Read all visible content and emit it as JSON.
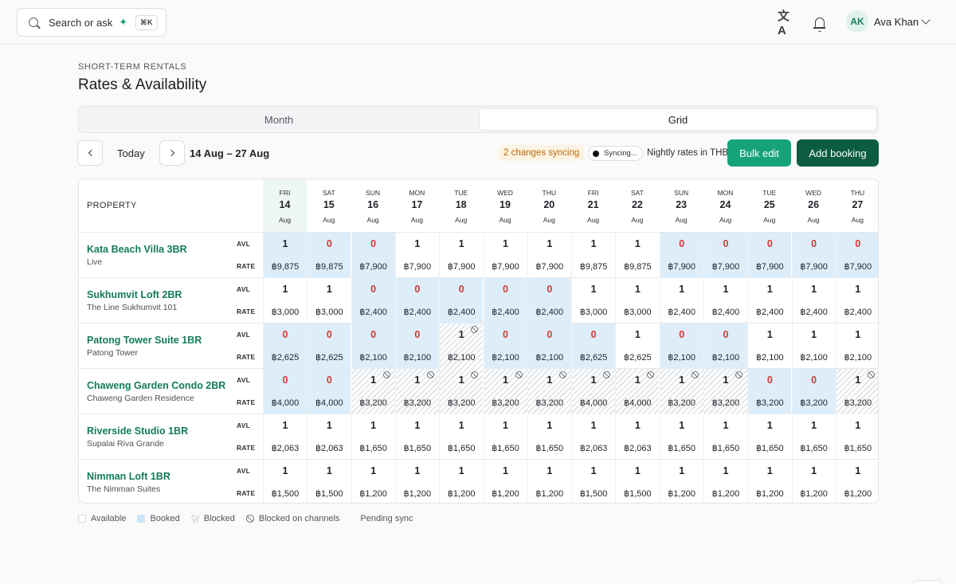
{
  "topbar": {
    "search_placeholder": "Search or ask",
    "search_shortcut": "⌘K",
    "user_initials": "AK",
    "user_name": "Ava Khan"
  },
  "header": {
    "eyebrow": "SHORT-TERM RENTALS",
    "title": "Rates & Availability"
  },
  "view_switch": {
    "month": "Month",
    "grid": "Grid",
    "selected": "Grid"
  },
  "toolbar": {
    "today": "Today",
    "range": "14 Aug – 27 Aug",
    "changes_syncing": "2 changes syncing",
    "sync_status": "Syncing...",
    "rates_note": "Nightly rates in THB",
    "bulk_edit": "Bulk edit",
    "add_booking": "Add booking"
  },
  "grid": {
    "property_header": "PROPERTY",
    "avl_label": "AVL",
    "rate_label": "RATE",
    "days": [
      {
        "dow": "FRI",
        "day": "14",
        "month": "Aug",
        "today": true
      },
      {
        "dow": "SAT",
        "day": "15",
        "month": "Aug"
      },
      {
        "dow": "SUN",
        "day": "16",
        "month": "Aug"
      },
      {
        "dow": "MON",
        "day": "17",
        "month": "Aug"
      },
      {
        "dow": "TUE",
        "day": "18",
        "month": "Aug"
      },
      {
        "dow": "WED",
        "day": "19",
        "month": "Aug"
      },
      {
        "dow": "THU",
        "day": "20",
        "month": "Aug"
      },
      {
        "dow": "FRI",
        "day": "21",
        "month": "Aug"
      },
      {
        "dow": "SAT",
        "day": "22",
        "month": "Aug"
      },
      {
        "dow": "SUN",
        "day": "23",
        "month": "Aug"
      },
      {
        "dow": "MON",
        "day": "24",
        "month": "Aug"
      },
      {
        "dow": "TUE",
        "day": "25",
        "month": "Aug"
      },
      {
        "dow": "WED",
        "day": "26",
        "month": "Aug"
      },
      {
        "dow": "THU",
        "day": "27",
        "month": "Aug"
      }
    ],
    "properties": [
      {
        "name": "Kata Beach Villa 3BR",
        "sub": "Live",
        "avl": [
          "1",
          "0",
          "0",
          "1",
          "1",
          "1",
          "1",
          "1",
          "1",
          "0",
          "0",
          "0",
          "0",
          "0"
        ],
        "rate": [
          "฿9,875",
          "฿9,875",
          "฿7,900",
          "฿7,900",
          "฿7,900",
          "฿7,900",
          "฿7,900",
          "฿9,875",
          "฿9,875",
          "฿7,900",
          "฿7,900",
          "฿7,900",
          "฿7,900",
          "฿7,900"
        ],
        "status": [
          "booked",
          "booked",
          "booked",
          "",
          "",
          "",
          "",
          "",
          "",
          "booked",
          "booked",
          "booked",
          "booked",
          "booked"
        ],
        "channel": [
          false,
          false,
          false,
          false,
          false,
          false,
          false,
          false,
          false,
          false,
          false,
          false,
          false,
          false
        ]
      },
      {
        "name": "Sukhumvit Loft 2BR",
        "sub": "The Line Sukhumvit 101",
        "avl": [
          "1",
          "1",
          "0",
          "0",
          "0",
          "0",
          "0",
          "1",
          "1",
          "1",
          "1",
          "1",
          "1",
          "1"
        ],
        "rate": [
          "฿3,000",
          "฿3,000",
          "฿2,400",
          "฿2,400",
          "฿2,400",
          "฿2,400",
          "฿2,400",
          "฿3,000",
          "฿3,000",
          "฿2,400",
          "฿2,400",
          "฿2,400",
          "฿2,400",
          "฿2,400"
        ],
        "status": [
          "",
          "",
          "booked",
          "booked",
          "booked",
          "booked",
          "booked",
          "",
          "",
          "",
          "",
          "",
          "",
          ""
        ],
        "channel": [
          false,
          false,
          false,
          false,
          false,
          false,
          false,
          false,
          false,
          false,
          false,
          false,
          false,
          false
        ]
      },
      {
        "name": "Patong Tower Suite 1BR",
        "sub": "Patong Tower",
        "avl": [
          "0",
          "0",
          "0",
          "0",
          "1",
          "0",
          "0",
          "0",
          "1",
          "0",
          "0",
          "1",
          "1",
          "1"
        ],
        "rate": [
          "฿2,625",
          "฿2,625",
          "฿2,100",
          "฿2,100",
          "฿2,100",
          "฿2,100",
          "฿2,100",
          "฿2,625",
          "฿2,625",
          "฿2,100",
          "฿2,100",
          "฿2,100",
          "฿2,100",
          "฿2,100"
        ],
        "status": [
          "booked",
          "booked",
          "booked",
          "booked",
          "blocked",
          "booked",
          "booked",
          "booked",
          "",
          "booked",
          "booked",
          "",
          "",
          ""
        ],
        "channel": [
          false,
          false,
          false,
          false,
          true,
          false,
          false,
          false,
          false,
          false,
          false,
          false,
          false,
          false
        ]
      },
      {
        "name": "Chaweng Garden Condo 2BR",
        "sub": "Chaweng Garden Residence",
        "avl": [
          "0",
          "0",
          "1",
          "1",
          "1",
          "1",
          "1",
          "1",
          "1",
          "1",
          "1",
          "0",
          "0",
          "1"
        ],
        "rate": [
          "฿4,000",
          "฿4,000",
          "฿3,200",
          "฿3,200",
          "฿3,200",
          "฿3,200",
          "฿3,200",
          "฿4,000",
          "฿4,000",
          "฿3,200",
          "฿3,200",
          "฿3,200",
          "฿3,200",
          "฿3,200"
        ],
        "status": [
          "booked",
          "booked",
          "blocked",
          "blocked",
          "blocked",
          "blocked",
          "blocked",
          "blocked",
          "blocked",
          "blocked",
          "blocked",
          "booked",
          "booked",
          "blocked"
        ],
        "channel": [
          false,
          false,
          true,
          true,
          true,
          true,
          true,
          true,
          true,
          true,
          true,
          false,
          false,
          true
        ]
      },
      {
        "name": "Riverside Studio 1BR",
        "sub": "Supalai Riva Grande",
        "avl": [
          "1",
          "1",
          "1",
          "1",
          "1",
          "1",
          "1",
          "1",
          "1",
          "1",
          "1",
          "1",
          "1",
          "1"
        ],
        "rate": [
          "฿2,063",
          "฿2,063",
          "฿1,650",
          "฿1,650",
          "฿1,650",
          "฿1,650",
          "฿1,650",
          "฿2,063",
          "฿2,063",
          "฿1,650",
          "฿1,650",
          "฿1,650",
          "฿1,650",
          "฿1,650"
        ],
        "status": [
          "",
          "",
          "",
          "",
          "",
          "",
          "",
          "",
          "",
          "",
          "",
          "",
          "",
          ""
        ],
        "channel": [
          false,
          false,
          false,
          false,
          false,
          false,
          false,
          false,
          false,
          false,
          false,
          false,
          false,
          false
        ]
      },
      {
        "name": "Nimman Loft 1BR",
        "sub": "The Nimman Suites",
        "avl": [
          "1",
          "1",
          "1",
          "1",
          "1",
          "1",
          "1",
          "1",
          "1",
          "1",
          "1",
          "1",
          "1",
          "1"
        ],
        "rate": [
          "฿1,500",
          "฿1,500",
          "฿1,200",
          "฿1,200",
          "฿1,200",
          "฿1,200",
          "฿1,200",
          "฿1,500",
          "฿1,500",
          "฿1,200",
          "฿1,200",
          "฿1,200",
          "฿1,200",
          "฿1,200"
        ],
        "status": [
          "",
          "",
          "",
          "",
          "",
          "",
          "",
          "",
          "",
          "",
          "",
          "",
          "",
          ""
        ],
        "channel": [
          false,
          false,
          false,
          false,
          false,
          false,
          false,
          false,
          false,
          false,
          false,
          false,
          false,
          false
        ]
      }
    ]
  },
  "legend": {
    "available": "Available",
    "booked": "Booked",
    "blocked": "Blocked",
    "blocked_channels": "Blocked on channels",
    "pending": "Pending sync"
  },
  "colors": {
    "brand": "#16a37a",
    "brand_dark": "#0b5c43",
    "property_name": "#137c57",
    "zero_avl": "#d03a32",
    "booked_bg": "#ddeefa"
  }
}
